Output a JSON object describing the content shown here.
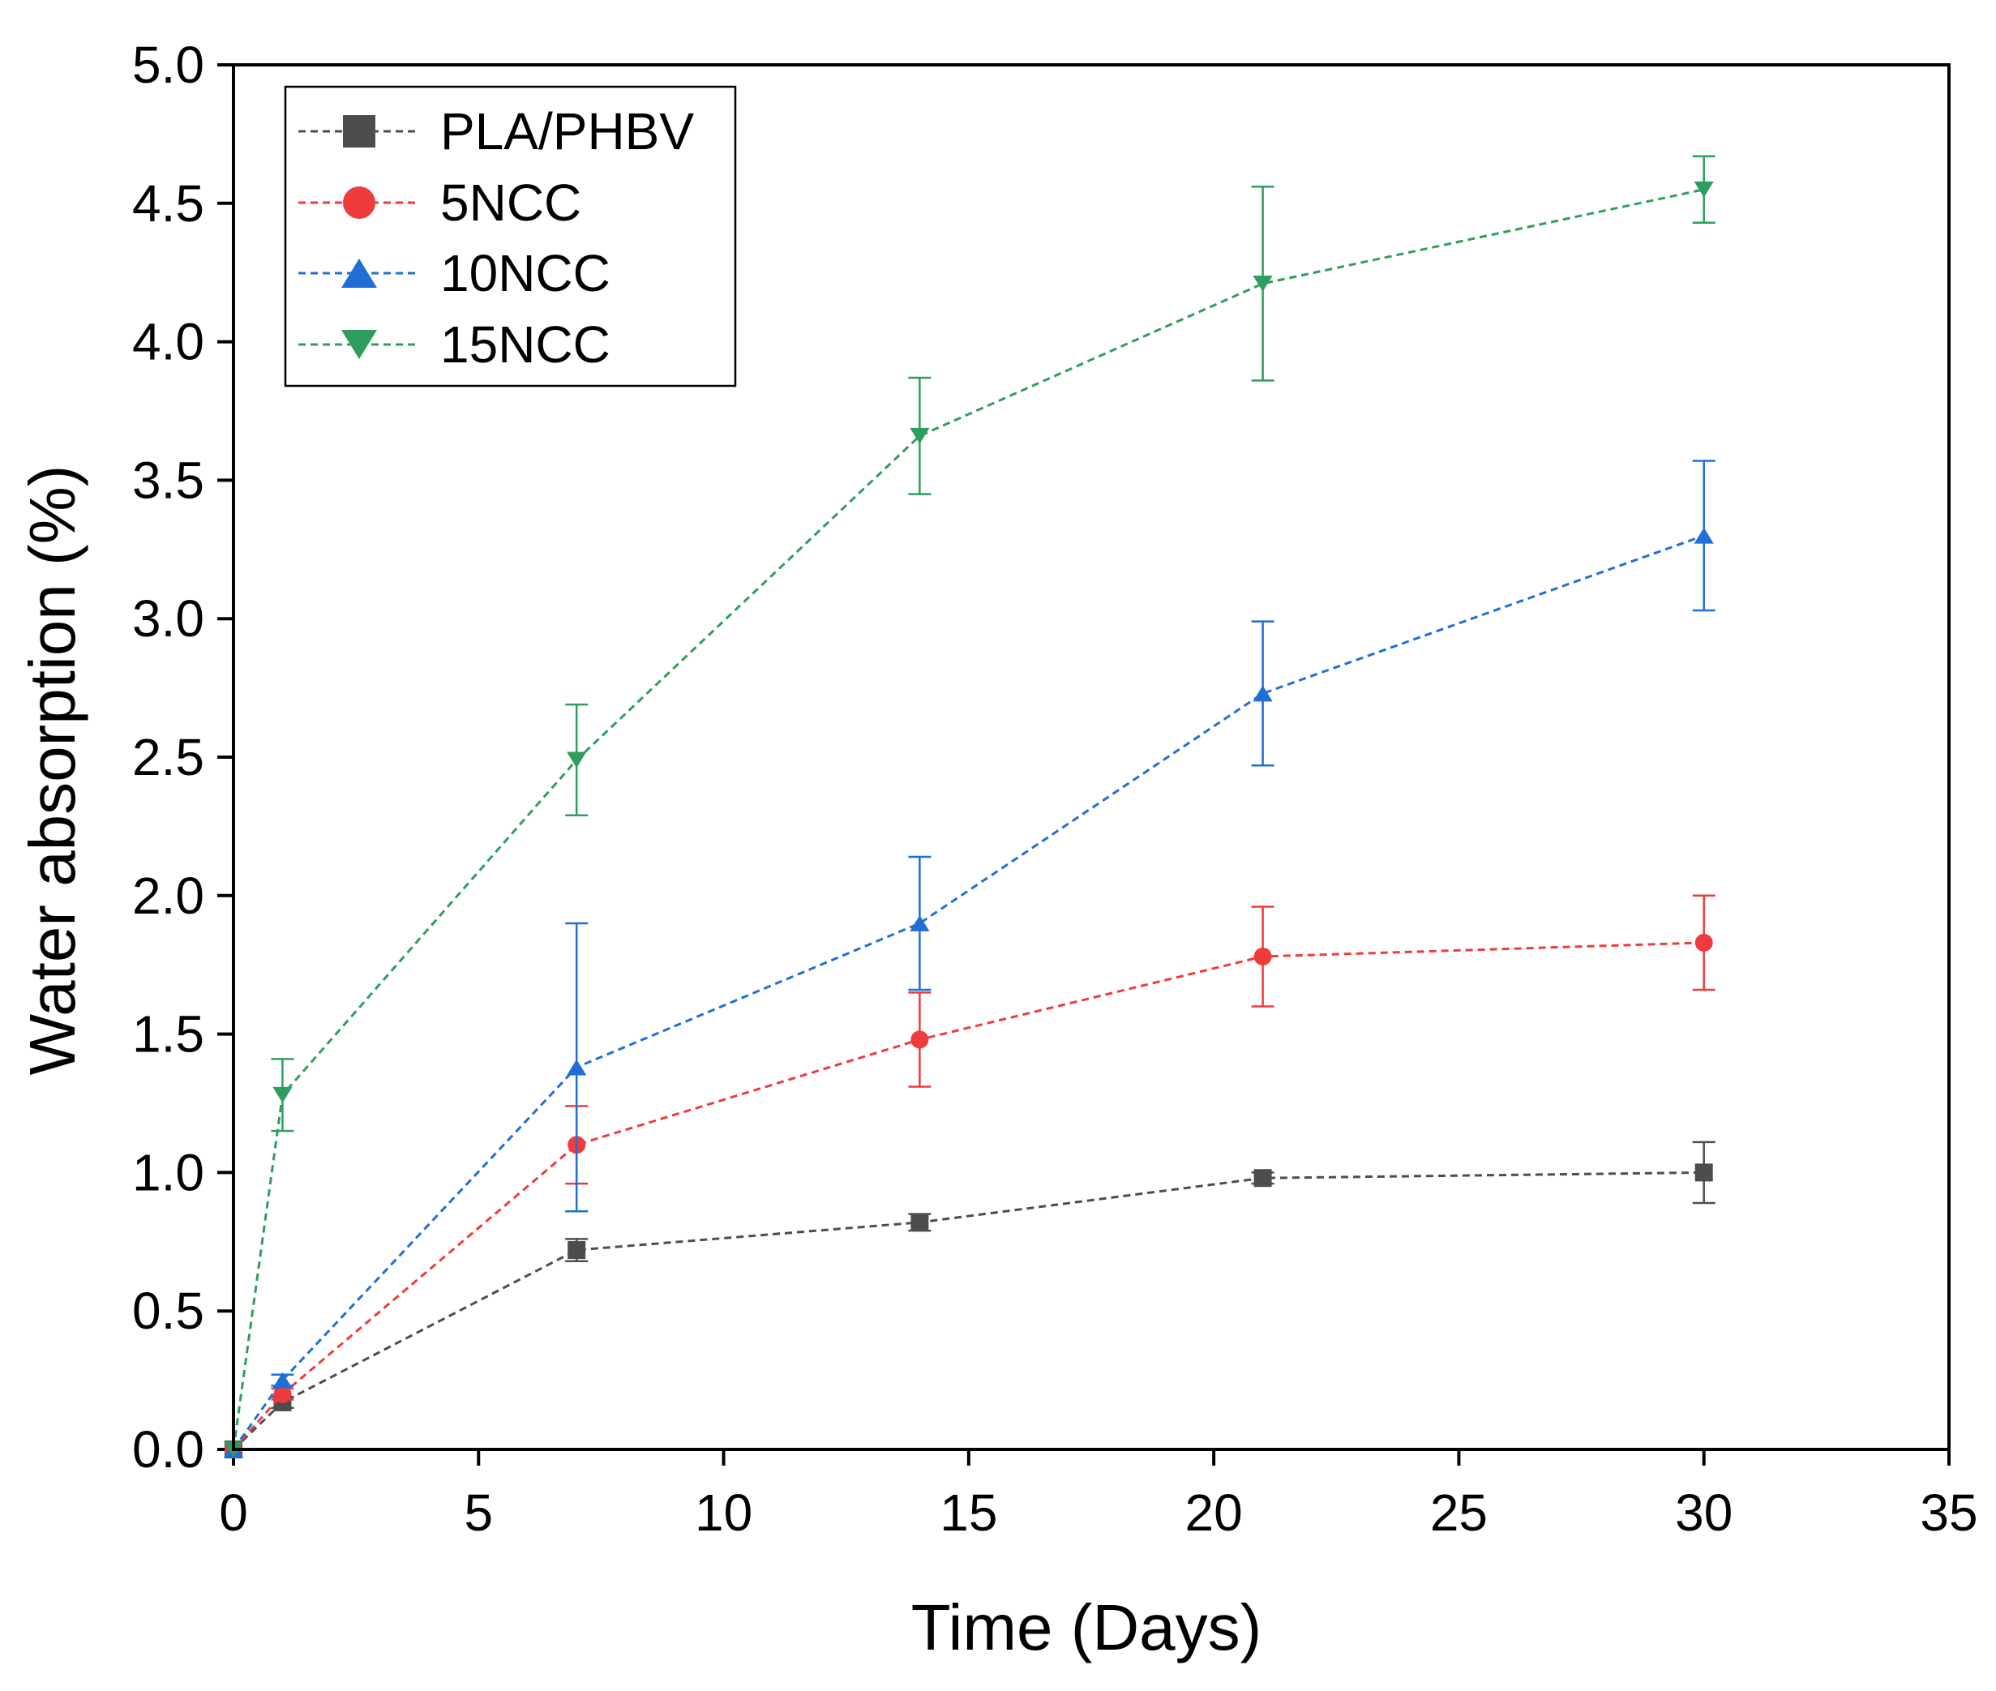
{
  "chart_data": {
    "type": "line",
    "title": "",
    "xlabel": "Time (Days)",
    "ylabel": "Water absorption (%)",
    "xlim": [
      0,
      35
    ],
    "ylim": [
      0,
      5
    ],
    "xticks": [
      0,
      5,
      10,
      15,
      20,
      25,
      30,
      35
    ],
    "yticks": [
      0,
      0.5,
      1,
      1.5,
      2,
      2.5,
      3,
      3.5,
      4,
      4.5,
      5
    ],
    "xtick_labels": [
      "0",
      "5",
      "10",
      "15",
      "20",
      "25",
      "30",
      "35"
    ],
    "ytick_labels": [
      "0.0",
      "0.5",
      "1.0",
      "1.5",
      "2.0",
      "2.5",
      "3.0",
      "3.5",
      "4.0",
      "4.5",
      "5.0"
    ],
    "grid": false,
    "legend_position": "top-left",
    "x": [
      0,
      1,
      7,
      14,
      21,
      30
    ],
    "series": [
      {
        "name": "PLA/PHBV",
        "color": "#4d4d4d",
        "marker": "square",
        "values": [
          0,
          0.17,
          0.72,
          0.82,
          0.98,
          1.0
        ],
        "errors": [
          0,
          0.02,
          0.04,
          0.03,
          0.02,
          0.11
        ]
      },
      {
        "name": "5NCC",
        "color": "#ef3b3b",
        "marker": "circle",
        "values": [
          0,
          0.2,
          1.1,
          1.48,
          1.78,
          1.83
        ],
        "errors": [
          0,
          0.02,
          0.14,
          0.17,
          0.18,
          0.17
        ]
      },
      {
        "name": "10NCC",
        "color": "#1f6fd6",
        "marker": "triangle-up",
        "values": [
          0,
          0.25,
          1.38,
          1.9,
          2.73,
          3.3
        ],
        "errors": [
          0,
          0.02,
          0.52,
          0.24,
          0.26,
          0.27
        ]
      },
      {
        "name": "15NCC",
        "color": "#2e9e5e",
        "marker": "triangle-down",
        "values": [
          0,
          1.28,
          2.49,
          3.66,
          4.21,
          4.55
        ],
        "errors": [
          0,
          0.13,
          0.2,
          0.21,
          0.35,
          0.12
        ]
      }
    ]
  }
}
